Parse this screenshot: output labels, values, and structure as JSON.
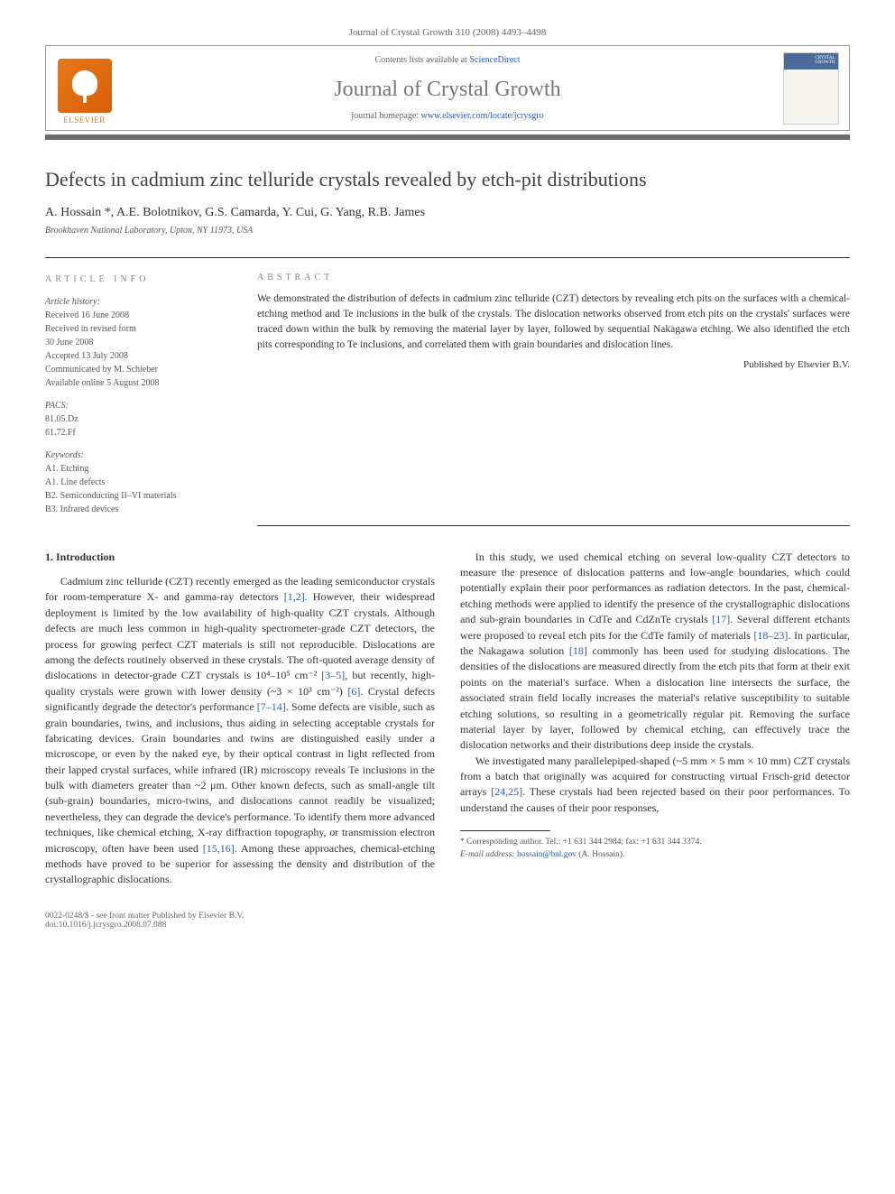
{
  "header": {
    "citation": "Journal of Crystal Growth 310 (2008) 4493–4498"
  },
  "banner": {
    "publisher_name": "ELSEVIER",
    "contents_prefix": "Contents lists available at ",
    "contents_link": "ScienceDirect",
    "journal_title": "Journal of Crystal Growth",
    "homepage_prefix": "journal homepage: ",
    "homepage_url": "www.elsevier.com/locate/jcrysgro",
    "cover_label_line1": "CRYSTAL",
    "cover_label_line2": "GROWTH"
  },
  "article": {
    "title": "Defects in cadmium zinc telluride crystals revealed by etch-pit distributions",
    "authors": "A. Hossain *, A.E. Bolotnikov, G.S. Camarda, Y. Cui, G. Yang, R.B. James",
    "affiliation": "Brookhaven National Laboratory, Upton, NY 11973, USA"
  },
  "info": {
    "heading": "ARTICLE INFO",
    "history_head": "Article history:",
    "h1": "Received 16 June 2008",
    "h2": "Received in revised form",
    "h2b": "30 June 2008",
    "h3": "Accepted 13 July 2008",
    "h4": "Communicated by M. Schieber",
    "h5": "Available online 5 August 2008",
    "pacs_head": "PACS:",
    "pacs1": "81.05.Dz",
    "pacs2": "61.72.Ff",
    "keywords_head": "Keywords:",
    "k1": "A1. Etching",
    "k2": "A1. Line defects",
    "k3": "B2. Semiconducting II–VI materials",
    "k4": "B3. Infrared devices"
  },
  "abstract": {
    "heading": "ABSTRACT",
    "text": "We demonstrated the distribution of defects in cadmium zinc telluride (CZT) detectors by revealing etch pits on the surfaces with a chemical-etching method and Te inclusions in the bulk of the crystals. The dislocation networks observed from etch pits on the crystals' surfaces were traced down within the bulk by removing the material layer by layer, followed by sequential Nakagawa etching. We also identified the etch pits corresponding to Te inclusions, and correlated them with grain boundaries and dislocation lines.",
    "published_by": "Published by Elsevier B.V."
  },
  "body": {
    "section1_head": "1. Introduction",
    "p1a": "Cadmium zinc telluride (CZT) recently emerged as the leading semiconductor crystals for room-temperature X- and gamma-ray detectors ",
    "r1": "[1,2]",
    "p1b": ". However, their widespread deployment is limited by the low availability of high-quality CZT crystals. Although defects are much less common in high-quality spectrometer-grade CZT detectors, the process for growing perfect CZT materials is still not reproducible. Dislocations are among the defects routinely observed in these crystals. The oft-quoted average density of dislocations in detector-grade CZT crystals is 10⁴–10⁵ cm⁻² ",
    "r2": "[3–5]",
    "p1c": ", but recently, high-quality crystals were grown with lower density (~3 × 10³ cm⁻²) ",
    "r3": "[6]",
    "p1d": ". Crystal defects significantly degrade the detector's performance ",
    "r4": "[7–14]",
    "p1e": ". Some defects are visible, such as grain boundaries, twins, and inclusions, thus aiding in selecting acceptable crystals for fabricating devices. Grain boundaries and twins are distinguished easily under a microscope, or even by the naked eye, by their optical contrast in light reflected from their lapped crystal surfaces, while infrared (IR) microscopy reveals Te inclusions in the bulk with diameters greater than ~2 μm. Other known defects, such as small-angle tilt (sub-grain) boundaries, micro-twins, and dislocations cannot readily be visualized; nevertheless, they can degrade the device's performance. To identify them more advanced techniques, like chemical etching, X-ray diffraction topography, or transmission electron microscopy, often have been used ",
    "r5": "[15,16]",
    "p1f": ". Among these approaches, chemical-etching methods have proved to be superior for assessing the density and distribution of the crystallographic dislocations.",
    "p2a": "In this study, we used chemical etching on several low-quality CZT detectors to measure the presence of dislocation patterns and low-angle boundaries, which could potentially explain their poor performances as radiation detectors. In the past, chemical-etching methods were applied to identify the presence of the crystallographic dislocations and sub-grain boundaries in CdTe and CdZnTe crystals ",
    "r6": "[17]",
    "p2b": ". Several different etchants were proposed to reveal etch pits for the CdTe family of materials ",
    "r7": "[18–23]",
    "p2c": ". In particular, the Nakagawa solution ",
    "r8": "[18]",
    "p2d": " commonly has been used for studying dislocations. The densities of the dislocations are measured directly from the etch pits that form at their exit points on the material's surface. When a dislocation line intersects the surface, the associated strain field locally increases the material's relative susceptibility to suitable etching solutions, so resulting in a geometrically regular pit. Removing the surface material layer by layer, followed by chemical etching, can effectively trace the dislocation networks and their distributions deep inside the crystals.",
    "p3a": "We investigated many parallelepiped-shaped (~5 mm × 5 mm × 10 mm) CZT crystals from a batch that originally was acquired for constructing virtual Frisch-grid detector arrays ",
    "r9": "[24,25]",
    "p3b": ". These crystals had been rejected based on their poor performances. To understand the causes of their poor responses,"
  },
  "footnote": {
    "corr": "* Corresponding author. Tel.: +1 631 344 2984; fax: +1 631 344 3374.",
    "email_label": "E-mail address: ",
    "email": "hossain@bnl.gov",
    "email_suffix": " (A. Hossain)."
  },
  "footer": {
    "issn": "0022-0248/$ - see front matter Published by Elsevier B.V.",
    "doi": "doi:10.1016/j.jcrysgro.2008.07.088"
  },
  "colors": {
    "elsevier_orange": "#e67817",
    "link_blue": "#2a5db0",
    "rule_gray": "#6b6b6b",
    "cover_blue": "#4a6a9a",
    "text": "#333333"
  },
  "typography": {
    "body_size_pt": 12,
    "title_size_pt": 22,
    "journal_title_size_pt": 24,
    "abstract_size_pt": 11.5,
    "info_size_pt": 10
  }
}
